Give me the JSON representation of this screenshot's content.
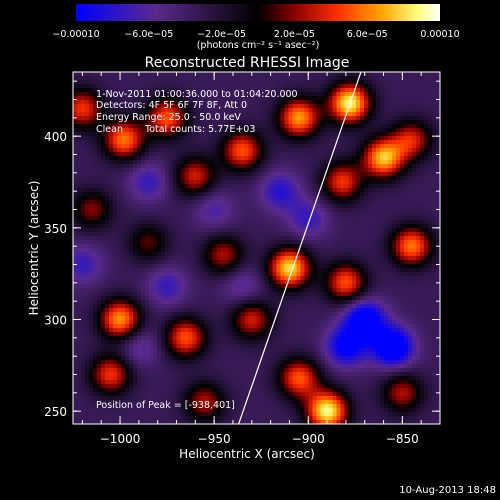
{
  "chart_data": {
    "type": "heatmap",
    "title": "Reconstructed RHESSI Image",
    "xlabel": "Heliocentric X (arcsec)",
    "ylabel": "Heliocentric Y (arcsec)",
    "xlim": [
      -1025,
      -830
    ],
    "ylim": [
      243,
      435
    ],
    "x_ticks": [
      -1000,
      -950,
      -900,
      -850
    ],
    "y_ticks": [
      250,
      300,
      350,
      400
    ],
    "x_tick_labels": [
      "−1000",
      "−950",
      "−900",
      "−850"
    ],
    "y_tick_labels": [
      "250",
      "300",
      "350",
      "400"
    ],
    "colorbar": {
      "range": [
        -0.0001,
        0.0001
      ],
      "ticks": [
        -0.0001,
        -6e-05,
        -2e-05,
        2e-05,
        6e-05,
        0.0001
      ],
      "tick_labels": [
        "−0.00010",
        "−6.0e−05",
        "−2.0e−05",
        "2.0e−05",
        "6.0e−05",
        "0.00010"
      ],
      "label": "(photons cm⁻² s⁻¹ asec⁻²)",
      "colors": [
        "#0000ff",
        "#5a2a8c",
        "#000000",
        "#8a0000",
        "#ff3000",
        "#ffa500",
        "#ffff80",
        "#ffffff"
      ]
    },
    "annotations": [
      "1-Nov-2011 01:00:36.000 to 01:04:20.000",
      "Detectors: 4F 5F 6F 7F 8F, Att 0",
      "Energy Range: 25.0 - 50.0 keV",
      "Clean",
      "Total counts: 5.77E+03",
      "Position of Peak = [-938,401]"
    ],
    "peak": {
      "x": -938,
      "y": 401
    },
    "limb_line": [
      [
        -937,
        243
      ],
      [
        -872,
        435
      ]
    ],
    "sources": [
      {
        "x": -1020,
        "y": 415,
        "v": 5e-05
      },
      {
        "x": -998,
        "y": 398,
        "v": 6e-05
      },
      {
        "x": -975,
        "y": 410,
        "v": 5.5e-05
      },
      {
        "x": -960,
        "y": 378,
        "v": 4.5e-05
      },
      {
        "x": -935,
        "y": 392,
        "v": 5.5e-05
      },
      {
        "x": -905,
        "y": 410,
        "v": 6.5e-05
      },
      {
        "x": -878,
        "y": 418,
        "v": 8e-05
      },
      {
        "x": -860,
        "y": 388,
        "v": 7e-05
      },
      {
        "x": -882,
        "y": 375,
        "v": 5e-05
      },
      {
        "x": -845,
        "y": 398,
        "v": 4.5e-05
      },
      {
        "x": -1015,
        "y": 360,
        "v": 3.5e-05
      },
      {
        "x": -985,
        "y": 342,
        "v": 3e-05
      },
      {
        "x": -945,
        "y": 335,
        "v": 4e-05
      },
      {
        "x": -910,
        "y": 328,
        "v": 7.5e-05
      },
      {
        "x": -880,
        "y": 320,
        "v": 5.5e-05
      },
      {
        "x": -845,
        "y": 340,
        "v": 6e-05
      },
      {
        "x": -1000,
        "y": 300,
        "v": 6.5e-05
      },
      {
        "x": -965,
        "y": 290,
        "v": 5.5e-05
      },
      {
        "x": -930,
        "y": 300,
        "v": 4.5e-05
      },
      {
        "x": -1005,
        "y": 270,
        "v": 5e-05
      },
      {
        "x": -955,
        "y": 255,
        "v": 4e-05
      },
      {
        "x": -905,
        "y": 268,
        "v": 5.5e-05
      },
      {
        "x": -890,
        "y": 250,
        "v": 8e-05
      },
      {
        "x": -850,
        "y": 260,
        "v": 4e-05
      },
      {
        "x": -1020,
        "y": 330,
        "v": -2.5e-05
      },
      {
        "x": -985,
        "y": 375,
        "v": -2.5e-05
      },
      {
        "x": -950,
        "y": 360,
        "v": -2e-05
      },
      {
        "x": -915,
        "y": 370,
        "v": -3e-05
      },
      {
        "x": -900,
        "y": 355,
        "v": -2.5e-05
      },
      {
        "x": -870,
        "y": 300,
        "v": -5.5e-05
      },
      {
        "x": -855,
        "y": 285,
        "v": -6e-05
      },
      {
        "x": -880,
        "y": 285,
        "v": -4.5e-05
      },
      {
        "x": -935,
        "y": 318,
        "v": -2e-05
      },
      {
        "x": -975,
        "y": 318,
        "v": -2.5e-05
      },
      {
        "x": -990,
        "y": 285,
        "v": -2e-05
      }
    ]
  },
  "timestamp": "10-Aug-2013 18:48"
}
